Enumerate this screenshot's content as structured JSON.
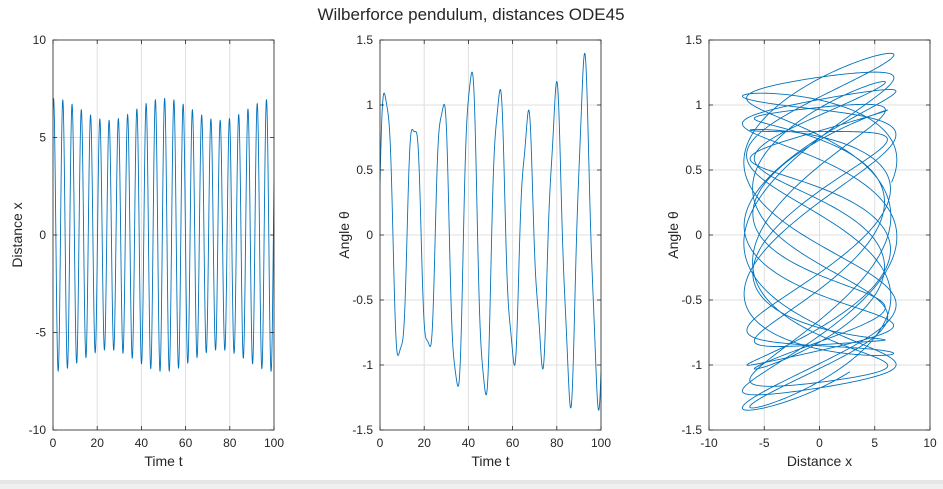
{
  "figure_title": "Wilberforce pendulum, distances ODE45",
  "colors": {
    "line": "#0072bd",
    "grid": "#dfdfdf",
    "axis": "#262626"
  },
  "chart_data": [
    {
      "type": "line",
      "xlabel": "Time t",
      "ylabel": "Distance x",
      "xlim": [
        0,
        100
      ],
      "ylim": [
        -10,
        10
      ],
      "xticks": [
        0,
        20,
        40,
        60,
        80,
        100
      ],
      "yticks": [
        -10,
        -5,
        0,
        5,
        10
      ],
      "xtick_labels": [
        "0",
        "20",
        "40",
        "60",
        "80",
        "100"
      ],
      "ytick_labels": [
        "-10",
        "-5",
        "0",
        "5",
        "10"
      ],
      "grid": true,
      "series": [
        {
          "t_range": [
            0,
            100
          ],
          "amplitude": 7,
          "omega": 1.5,
          "beat_omega": 0.125,
          "phase": 1.2
        }
      ]
    },
    {
      "type": "line",
      "xlabel": "Time t",
      "ylabel": "Angle θ",
      "xlim": [
        0,
        100
      ],
      "ylim": [
        -1.5,
        1.5
      ],
      "xticks": [
        0,
        20,
        40,
        60,
        80,
        100
      ],
      "yticks": [
        -1.5,
        -1,
        -0.5,
        0,
        0.5,
        1,
        1.5
      ],
      "xtick_labels": [
        "0",
        "20",
        "40",
        "60",
        "80",
        "100"
      ],
      "ytick_labels": [
        "-1.5",
        "-1",
        "-0.5",
        "0",
        "0.5",
        "1",
        "1.5"
      ],
      "grid": true,
      "series": [
        {
          "t_range": [
            0,
            100
          ],
          "amplitude": 1.4,
          "omega": 0.49,
          "beat_omega": 0.125,
          "fast_ripple": 0.12,
          "phase": 0.3
        }
      ]
    },
    {
      "type": "line",
      "xlabel": "Distance x",
      "ylabel": "Angle θ",
      "xlim": [
        -10,
        10
      ],
      "ylim": [
        -1.5,
        1.5
      ],
      "xticks": [
        -10,
        -5,
        0,
        5,
        10
      ],
      "yticks": [
        -1.5,
        -1,
        -0.5,
        0,
        0.5,
        1,
        1.5
      ],
      "xtick_labels": [
        "-10",
        "-5",
        "0",
        "5",
        "10"
      ],
      "ytick_labels": [
        "-1.5",
        "-1",
        "-0.5",
        "0",
        "0.5",
        "1",
        "1.5"
      ],
      "grid": true,
      "series": [
        {
          "parametric": true,
          "x_of": "distance",
          "y_of": "angle",
          "t_range": [
            0,
            100
          ]
        }
      ]
    }
  ]
}
